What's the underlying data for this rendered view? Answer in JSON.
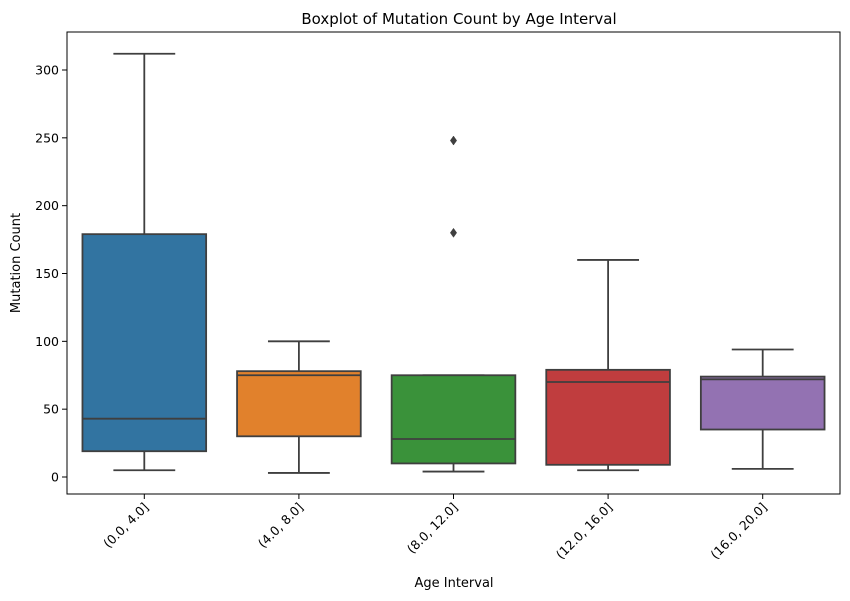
{
  "chart_data": {
    "type": "boxplot",
    "title": "Boxplot of Mutation Count by Age Interval",
    "xlabel": "Age Interval",
    "ylabel": "Mutation Count",
    "ylim": [
      -12,
      327
    ],
    "yticks": [
      0,
      50,
      100,
      150,
      200,
      250,
      300
    ],
    "ytick_labels": [
      "0",
      "50",
      "100",
      "150",
      "200",
      "250",
      "300"
    ],
    "grid": false,
    "legend": "none",
    "categories": [
      "(0.0, 4.0]",
      "(4.0, 8.0]",
      "(8.0, 12.0]",
      "(12.0, 16.0]",
      "(16.0, 20.0]"
    ],
    "boxes": [
      {
        "category": "(0.0, 4.0]",
        "whisker_low": 5,
        "q1": 19,
        "median": 43,
        "q3": 179,
        "whisker_high": 312,
        "outliers": [],
        "color": "#3274a1"
      },
      {
        "category": "(4.0, 8.0]",
        "whisker_low": 3,
        "q1": 30,
        "median": 75,
        "q3": 78,
        "whisker_high": 100,
        "outliers": [],
        "color": "#e1812c"
      },
      {
        "category": "(8.0, 12.0]",
        "whisker_low": 4,
        "q1": 10,
        "median": 28,
        "q3": 75,
        "whisker_high": 75,
        "outliers": [
          180,
          248
        ],
        "color": "#3a923a"
      },
      {
        "category": "(12.0, 16.0]",
        "whisker_low": 5,
        "q1": 9,
        "median": 70,
        "q3": 79,
        "whisker_high": 160,
        "outliers": [],
        "color": "#c03d3e"
      },
      {
        "category": "(16.0, 20.0]",
        "whisker_low": 6,
        "q1": 35,
        "median": 72,
        "q3": 74,
        "whisker_high": 94,
        "outliers": [],
        "color": "#9372b2"
      }
    ]
  }
}
